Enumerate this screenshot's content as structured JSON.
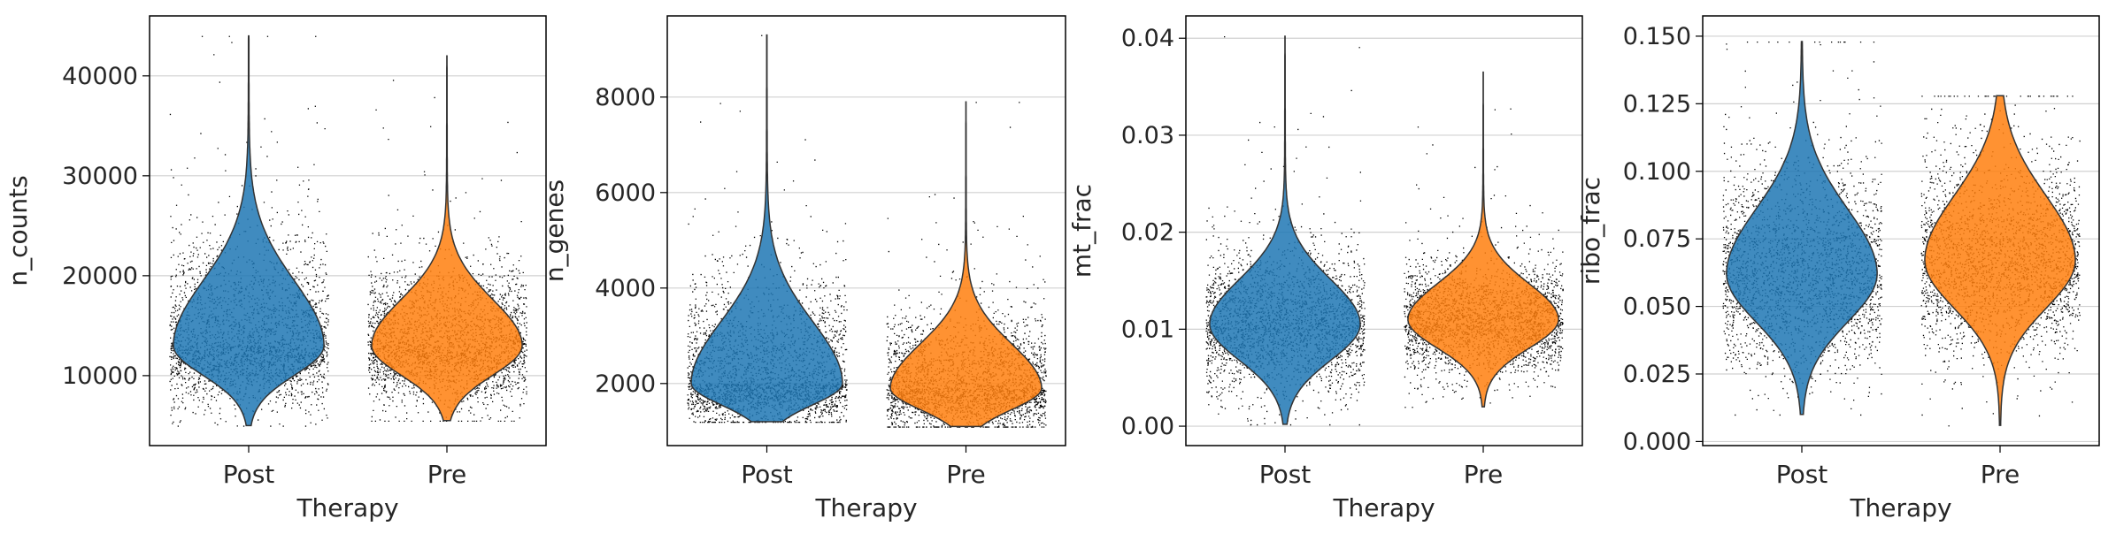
{
  "colors": {
    "Post": "#1f77b4",
    "Pre": "#ff7f0e",
    "dots": "#000000",
    "violin_edge": "#333333",
    "grid": "#d0d0d0"
  },
  "chart_data": [
    {
      "type": "violin",
      "xlabel": "Therapy",
      "ylabel": "n_counts",
      "categories": [
        "Post",
        "Pre"
      ],
      "ylim": [
        3000,
        46000
      ],
      "yticks": [
        10000,
        20000,
        30000,
        40000
      ],
      "ytick_labels": [
        "10000",
        "20000",
        "30000",
        "40000"
      ],
      "grid": true,
      "series": [
        {
          "category": "Post",
          "min": 5000,
          "q1": 11000,
          "median": 13000,
          "q3": 16500,
          "max": 44000
        },
        {
          "category": "Pre",
          "min": 5500,
          "q1": 11000,
          "median": 13000,
          "q3": 15500,
          "max": 42000
        }
      ]
    },
    {
      "type": "violin",
      "xlabel": "Therapy",
      "ylabel": "n_genes",
      "categories": [
        "Post",
        "Pre"
      ],
      "ylim": [
        700,
        9700
      ],
      "yticks": [
        2000,
        4000,
        6000,
        8000
      ],
      "ytick_labels": [
        "2000",
        "4000",
        "6000",
        "8000"
      ],
      "grid": true,
      "series": [
        {
          "category": "Post",
          "min": 1200,
          "q1": 1700,
          "median": 2000,
          "q3": 2700,
          "max": 9300
        },
        {
          "category": "Pre",
          "min": 1100,
          "q1": 1600,
          "median": 1900,
          "q3": 2400,
          "max": 7900
        }
      ]
    },
    {
      "type": "violin",
      "xlabel": "Therapy",
      "ylabel": "mt_frac",
      "categories": [
        "Post",
        "Pre"
      ],
      "ylim": [
        -0.002,
        0.0423
      ],
      "yticks": [
        0.0,
        0.01,
        0.02,
        0.03,
        0.04
      ],
      "ytick_labels": [
        "0.00",
        "0.01",
        "0.02",
        "0.03",
        "0.04"
      ],
      "grid": true,
      "series": [
        {
          "category": "Post",
          "min": 0.0002,
          "q1": 0.008,
          "median": 0.0105,
          "q3": 0.013,
          "max": 0.0402
        },
        {
          "category": "Pre",
          "min": 0.002,
          "q1": 0.009,
          "median": 0.011,
          "q3": 0.013,
          "max": 0.0365
        }
      ]
    },
    {
      "type": "violin",
      "xlabel": "Therapy",
      "ylabel": "ribo_frac",
      "categories": [
        "Post",
        "Pre"
      ],
      "ylim": [
        -0.0015,
        0.1575
      ],
      "yticks": [
        0.0,
        0.025,
        0.05,
        0.075,
        0.1,
        0.125,
        0.15
      ],
      "ytick_labels": [
        "0.000",
        "0.025",
        "0.050",
        "0.075",
        "0.100",
        "0.125",
        "0.150"
      ],
      "grid": true,
      "series": [
        {
          "category": "Post",
          "min": 0.01,
          "q1": 0.05,
          "median": 0.062,
          "q3": 0.075,
          "max": 0.148
        },
        {
          "category": "Pre",
          "min": 0.006,
          "q1": 0.055,
          "median": 0.067,
          "q3": 0.08,
          "max": 0.128
        }
      ]
    }
  ]
}
